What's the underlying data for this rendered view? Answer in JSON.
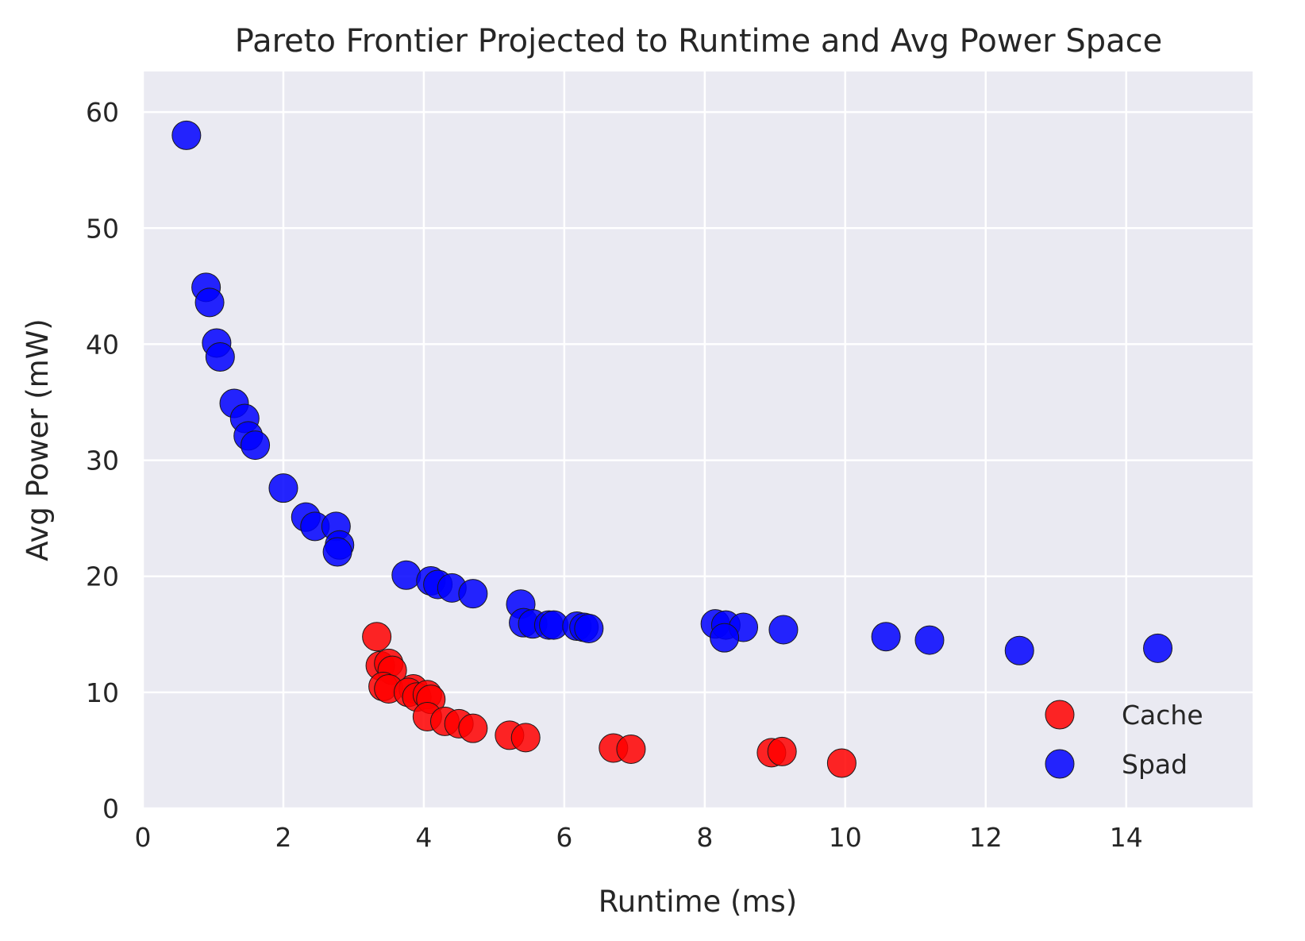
{
  "chart_data": {
    "type": "scatter",
    "title": "Pareto Frontier Projected to Runtime and Avg Power Space",
    "xlabel": "Runtime (ms)",
    "ylabel": "Avg Power (mW)",
    "xlim": [
      0,
      15.8
    ],
    "ylim": [
      0,
      63.5
    ],
    "xticks": [
      0,
      2,
      4,
      6,
      8,
      10,
      12,
      14
    ],
    "yticks": [
      0,
      10,
      20,
      30,
      40,
      50,
      60
    ],
    "grid": true,
    "background": "#eaeaf2",
    "legend_position": "lower-right",
    "series": [
      {
        "name": "Cache",
        "color": "#ff0000",
        "points": [
          [
            3.33,
            14.8
          ],
          [
            3.38,
            12.3
          ],
          [
            3.5,
            12.5
          ],
          [
            3.55,
            11.9
          ],
          [
            3.42,
            10.5
          ],
          [
            3.5,
            10.3
          ],
          [
            3.85,
            10.3
          ],
          [
            3.78,
            10.0
          ],
          [
            3.9,
            9.6
          ],
          [
            4.05,
            9.8
          ],
          [
            4.1,
            9.4
          ],
          [
            4.05,
            7.9
          ],
          [
            4.3,
            7.5
          ],
          [
            4.5,
            7.3
          ],
          [
            4.7,
            6.9
          ],
          [
            5.22,
            6.3
          ],
          [
            5.45,
            6.1
          ],
          [
            6.7,
            5.2
          ],
          [
            6.95,
            5.1
          ],
          [
            8.95,
            4.8
          ],
          [
            9.1,
            4.9
          ],
          [
            9.95,
            3.9
          ]
        ]
      },
      {
        "name": "Spad",
        "color": "#0000ff",
        "points": [
          [
            0.62,
            58.0
          ],
          [
            0.9,
            44.9
          ],
          [
            0.95,
            43.6
          ],
          [
            1.05,
            40.1
          ],
          [
            1.1,
            38.9
          ],
          [
            1.3,
            34.9
          ],
          [
            1.45,
            33.6
          ],
          [
            1.5,
            32.1
          ],
          [
            1.6,
            31.3
          ],
          [
            2.0,
            27.6
          ],
          [
            2.32,
            25.1
          ],
          [
            2.45,
            24.3
          ],
          [
            2.75,
            24.3
          ],
          [
            2.8,
            22.7
          ],
          [
            2.77,
            22.1
          ],
          [
            3.75,
            20.1
          ],
          [
            4.1,
            19.6
          ],
          [
            4.2,
            19.3
          ],
          [
            4.4,
            19.0
          ],
          [
            4.7,
            18.5
          ],
          [
            5.38,
            17.6
          ],
          [
            5.42,
            16.0
          ],
          [
            5.55,
            15.9
          ],
          [
            5.78,
            15.8
          ],
          [
            5.85,
            15.8
          ],
          [
            6.18,
            15.7
          ],
          [
            6.28,
            15.6
          ],
          [
            6.35,
            15.5
          ],
          [
            8.15,
            15.9
          ],
          [
            8.3,
            15.8
          ],
          [
            8.55,
            15.6
          ],
          [
            8.28,
            14.7
          ],
          [
            9.12,
            15.4
          ],
          [
            10.58,
            14.8
          ],
          [
            11.2,
            14.5
          ],
          [
            12.48,
            13.6
          ],
          [
            14.45,
            13.8
          ]
        ]
      }
    ]
  }
}
